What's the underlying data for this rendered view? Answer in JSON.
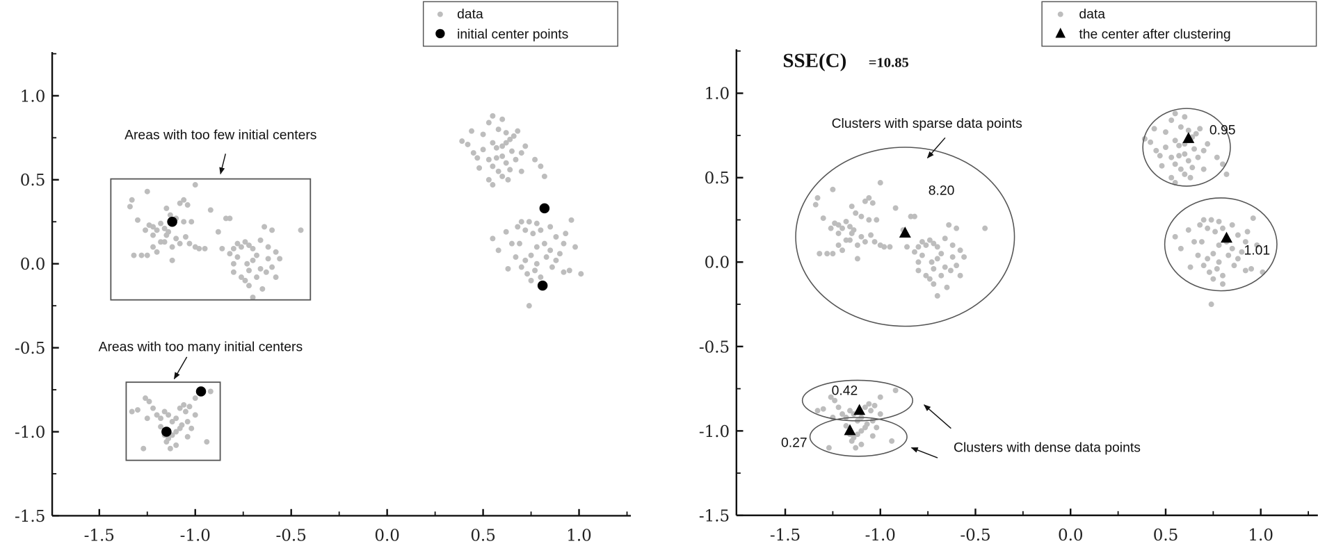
{
  "chart_data": [
    {
      "type": "scatter",
      "panel": "left",
      "xlim": [
        -1.75,
        1.27
      ],
      "ylim": [
        -1.5,
        1.26
      ],
      "xticks": [
        "-1.5",
        "-1.0",
        "-0.5",
        "0.0",
        "0.5",
        "1.0"
      ],
      "yticks": [
        "-1.5",
        "-1.0",
        "-0.5",
        "0.0",
        "0.5",
        "1.0"
      ],
      "grid": false,
      "legend_position": "top-center",
      "legend": [
        "data",
        "initial center points"
      ],
      "centers": [
        [
          -1.12,
          0.25
        ],
        [
          0.82,
          0.33
        ],
        [
          0.81,
          -0.13
        ],
        [
          -0.97,
          -0.76
        ],
        [
          -1.15,
          -1.0
        ]
      ],
      "boxes": [
        {
          "x": [
            -1.44,
            -0.4
          ],
          "y": [
            -0.215,
            0.505
          ],
          "label": "Areas with too few initial centers"
        },
        {
          "x": [
            -1.36,
            -0.87
          ],
          "y": [
            -1.17,
            -0.705
          ],
          "label": "Areas with too many initial centers"
        }
      ]
    },
    {
      "type": "scatter",
      "panel": "right",
      "xlim": [
        -1.75,
        1.3
      ],
      "ylim": [
        -1.5,
        1.26
      ],
      "xticks": [
        "-1.5",
        "-1.0",
        "-0.5",
        "0.0",
        "0.5",
        "1.0"
      ],
      "yticks": [
        "-1.5",
        "-1.0",
        "-0.5",
        "0.0",
        "0.5",
        "1.0"
      ],
      "grid": false,
      "legend_position": "top-right",
      "legend": [
        "data",
        "the center after clustering"
      ],
      "sse_label": "SSE(C)",
      "sse_value": "=10.85",
      "centers": [
        [
          -0.87,
          0.17
        ],
        [
          0.62,
          0.73
        ],
        [
          0.82,
          0.14
        ],
        [
          -1.11,
          -0.88
        ],
        [
          -1.16,
          -1.0
        ]
      ],
      "clusters": [
        {
          "cx": -0.87,
          "cy": 0.15,
          "rx": 0.575,
          "ry": 0.53,
          "sse": "8.20"
        },
        {
          "cx": 0.61,
          "cy": 0.68,
          "rx": 0.23,
          "ry": 0.23,
          "sse": "0.95"
        },
        {
          "cx": 0.79,
          "cy": 0.105,
          "rx": 0.295,
          "ry": 0.275,
          "sse": "1.01"
        },
        {
          "cx": -1.12,
          "cy": -0.82,
          "rx": 0.29,
          "ry": 0.12,
          "sse": "0.42"
        },
        {
          "cx": -1.115,
          "cy": -1.035,
          "rx": 0.255,
          "ry": 0.115,
          "sse": "0.27"
        }
      ],
      "annotations": [
        "Clusters with sparse data points",
        "Clusters with dense data points"
      ]
    }
  ],
  "data_points": [
    [
      0.39,
      0.73
    ],
    [
      0.42,
      0.71
    ],
    [
      0.45,
      0.66
    ],
    [
      0.47,
      0.63
    ],
    [
      0.44,
      0.79
    ],
    [
      0.5,
      0.77
    ],
    [
      0.53,
      0.84
    ],
    [
      0.55,
      0.88
    ],
    [
      0.58,
      0.8
    ],
    [
      0.6,
      0.86
    ],
    [
      0.62,
      0.78
    ],
    [
      0.55,
      0.72
    ],
    [
      0.57,
      0.69
    ],
    [
      0.6,
      0.7
    ],
    [
      0.62,
      0.72
    ],
    [
      0.64,
      0.74
    ],
    [
      0.66,
      0.76
    ],
    [
      0.68,
      0.79
    ],
    [
      0.65,
      0.67
    ],
    [
      0.6,
      0.64
    ],
    [
      0.57,
      0.63
    ],
    [
      0.53,
      0.62
    ],
    [
      0.55,
      0.58
    ],
    [
      0.62,
      0.6
    ],
    [
      0.58,
      0.55
    ],
    [
      0.53,
      0.5
    ],
    [
      0.55,
      0.47
    ],
    [
      0.6,
      0.52
    ],
    [
      0.64,
      0.56
    ],
    [
      0.7,
      0.66
    ],
    [
      0.72,
      0.7
    ],
    [
      0.77,
      0.62
    ],
    [
      0.8,
      0.58
    ],
    [
      0.82,
      0.52
    ],
    [
      0.7,
      0.55
    ],
    [
      0.67,
      0.62
    ],
    [
      0.5,
      0.68
    ],
    [
      0.48,
      0.57
    ],
    [
      0.63,
      0.5
    ],
    [
      0.55,
      0.15
    ],
    [
      0.58,
      0.08
    ],
    [
      0.62,
      0.19
    ],
    [
      0.65,
      0.12
    ],
    [
      0.68,
      0.22
    ],
    [
      0.7,
      0.25
    ],
    [
      0.72,
      0.2
    ],
    [
      0.74,
      0.25
    ],
    [
      0.76,
      0.18
    ],
    [
      0.78,
      0.24
    ],
    [
      0.8,
      0.2
    ],
    [
      0.85,
      0.22
    ],
    [
      0.88,
      0.16
    ],
    [
      0.92,
      0.12
    ],
    [
      0.96,
      0.26
    ],
    [
      0.98,
      0.1
    ],
    [
      1.01,
      -0.06
    ],
    [
      0.95,
      -0.04
    ],
    [
      0.92,
      -0.05
    ],
    [
      0.88,
      0.02
    ],
    [
      0.85,
      0.08
    ],
    [
      0.82,
      0.12
    ],
    [
      0.78,
      0.1
    ],
    [
      0.75,
      0.05
    ],
    [
      0.72,
      0.02
    ],
    [
      0.7,
      -0.02
    ],
    [
      0.67,
      0.04
    ],
    [
      0.63,
      -0.03
    ],
    [
      0.73,
      -0.06
    ],
    [
      0.77,
      -0.04
    ],
    [
      0.8,
      -0.08
    ],
    [
      0.75,
      -0.1
    ],
    [
      0.78,
      0.0
    ],
    [
      0.83,
      0.04
    ],
    [
      0.86,
      -0.02
    ],
    [
      0.9,
      0.06
    ],
    [
      0.74,
      -0.25
    ],
    [
      0.8,
      -0.13
    ],
    [
      0.69,
      0.12
    ],
    [
      0.93,
      0.18
    ],
    [
      -1.34,
      0.34
    ],
    [
      -1.33,
      0.38
    ],
    [
      -1.3,
      0.26
    ],
    [
      -1.25,
      0.43
    ],
    [
      -1.22,
      0.22
    ],
    [
      -1.2,
      0.2
    ],
    [
      -1.22,
      0.17
    ],
    [
      -1.18,
      0.24
    ],
    [
      -1.16,
      0.21
    ],
    [
      -1.14,
      0.19
    ],
    [
      -1.18,
      0.13
    ],
    [
      -1.2,
      0.07
    ],
    [
      -1.22,
      0.1
    ],
    [
      -1.25,
      0.05
    ],
    [
      -1.28,
      0.05
    ],
    [
      -1.32,
      0.05
    ],
    [
      -1.15,
      0.33
    ],
    [
      -1.13,
      0.29
    ],
    [
      -1.1,
      0.27
    ],
    [
      -1.08,
      0.36
    ],
    [
      -1.06,
      0.38
    ],
    [
      -1.04,
      0.35
    ],
    [
      -1.0,
      0.47
    ],
    [
      -1.06,
      0.25
    ],
    [
      -1.02,
      0.25
    ],
    [
      -1.1,
      0.15
    ],
    [
      -1.08,
      0.12
    ],
    [
      -1.12,
      0.1
    ],
    [
      -1.05,
      0.16
    ],
    [
      -1.03,
      0.12
    ],
    [
      -1.0,
      0.1
    ],
    [
      -0.98,
      0.09
    ],
    [
      -0.95,
      0.09
    ],
    [
      -1.15,
      0.17
    ],
    [
      -1.12,
      0.02
    ],
    [
      -1.16,
      0.13
    ],
    [
      -1.26,
      0.2
    ],
    [
      -1.24,
      0.23
    ],
    [
      -0.92,
      0.32
    ],
    [
      -0.88,
      0.19
    ],
    [
      -0.84,
      0.27
    ],
    [
      -0.82,
      0.27
    ],
    [
      -0.86,
      0.09
    ],
    [
      -0.8,
      0.09
    ],
    [
      -0.78,
      0.12
    ],
    [
      -0.76,
      0.1
    ],
    [
      -0.74,
      0.13
    ],
    [
      -0.72,
      0.11
    ],
    [
      -0.7,
      0.09
    ],
    [
      -0.66,
      0.14
    ],
    [
      -0.64,
      0.22
    ],
    [
      -0.62,
      0.1
    ],
    [
      -0.6,
      0.2
    ],
    [
      -0.58,
      0.07
    ],
    [
      -0.56,
      0.03
    ],
    [
      -0.6,
      -0.02
    ],
    [
      -0.63,
      -0.05
    ],
    [
      -0.58,
      -0.08
    ],
    [
      -0.66,
      -0.03
    ],
    [
      -0.7,
      0.02
    ],
    [
      -0.72,
      -0.04
    ],
    [
      -0.78,
      0.04
    ],
    [
      -0.8,
      0.0
    ],
    [
      -0.8,
      -0.05
    ],
    [
      -0.76,
      -0.08
    ],
    [
      -0.74,
      -0.1
    ],
    [
      -0.72,
      -0.13
    ],
    [
      -0.7,
      -0.2
    ],
    [
      -0.68,
      -0.08
    ],
    [
      -0.82,
      0.06
    ],
    [
      -0.62,
      0.03
    ],
    [
      -0.45,
      0.2
    ],
    [
      -0.65,
      -0.15
    ],
    [
      -0.73,
      0.0
    ],
    [
      -0.68,
      0.05
    ],
    [
      -1.33,
      -0.88
    ],
    [
      -1.3,
      -0.87
    ],
    [
      -1.26,
      -0.8
    ],
    [
      -1.24,
      -0.82
    ],
    [
      -1.22,
      -0.86
    ],
    [
      -1.25,
      -0.92
    ],
    [
      -1.2,
      -0.9
    ],
    [
      -1.18,
      -0.92
    ],
    [
      -1.16,
      -0.88
    ],
    [
      -1.14,
      -0.9
    ],
    [
      -1.12,
      -0.94
    ],
    [
      -1.1,
      -0.92
    ],
    [
      -1.08,
      -0.86
    ],
    [
      -1.06,
      -0.84
    ],
    [
      -1.05,
      -0.88
    ],
    [
      -1.04,
      -0.94
    ],
    [
      -1.0,
      -0.8
    ],
    [
      -0.92,
      -0.76
    ],
    [
      -1.02,
      -0.98
    ],
    [
      -1.08,
      -0.98
    ],
    [
      -1.1,
      -1.0
    ],
    [
      -1.12,
      -1.02
    ],
    [
      -1.14,
      -1.04
    ],
    [
      -1.16,
      -1.02
    ],
    [
      -1.15,
      -1.06
    ],
    [
      -1.13,
      -1.1
    ],
    [
      -1.1,
      -1.08
    ],
    [
      -1.04,
      -1.03
    ],
    [
      -0.94,
      -1.06
    ],
    [
      -1.27,
      -1.1
    ],
    [
      -1.18,
      -0.97
    ],
    [
      -1.0,
      -0.9
    ],
    [
      -1.07,
      -0.96
    ],
    [
      -1.03,
      -0.85
    ]
  ],
  "colors": {
    "data": "#bdbdbd",
    "center": "#000000",
    "axis": "#111111",
    "frame": "#555555"
  }
}
